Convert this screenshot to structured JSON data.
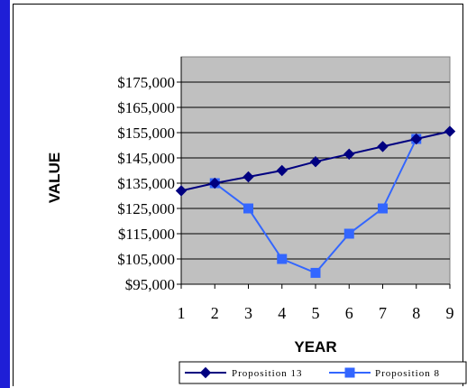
{
  "chart_data": {
    "type": "line",
    "title": "",
    "xlabel": "YEAR",
    "ylabel": "VALUE",
    "x": [
      1,
      2,
      3,
      4,
      5,
      6,
      7,
      8,
      9
    ],
    "ylim": [
      95000,
      185000
    ],
    "yticks": [
      95000,
      105000,
      115000,
      125000,
      135000,
      145000,
      155000,
      165000,
      175000
    ],
    "ytick_labels": [
      "$95,000",
      "$105,000",
      "$115,000",
      "$125,000",
      "$135,000",
      "$145,000",
      "$155,000",
      "$165,000",
      "$175,000"
    ],
    "xtick_labels": [
      "1",
      "2",
      "3",
      "4",
      "5",
      "6",
      "7",
      "8",
      "9"
    ],
    "grid": "horizontal",
    "plot_background": "#c0c0c0",
    "legend_position": "bottom",
    "series": [
      {
        "name": "Proposition 13",
        "color": "#000080",
        "marker": "diamond",
        "x": [
          1,
          2,
          3,
          4,
          5,
          6,
          7,
          8,
          9
        ],
        "values": [
          132000,
          135000,
          137500,
          140000,
          143500,
          146500,
          149500,
          152500,
          155500
        ]
      },
      {
        "name": "Proposition 8",
        "color": "#3366ff",
        "marker": "square",
        "x": [
          2,
          3,
          4,
          5,
          6,
          7,
          8
        ],
        "values": [
          135000,
          125000,
          105000,
          99500,
          115000,
          125000,
          152500
        ]
      }
    ]
  }
}
